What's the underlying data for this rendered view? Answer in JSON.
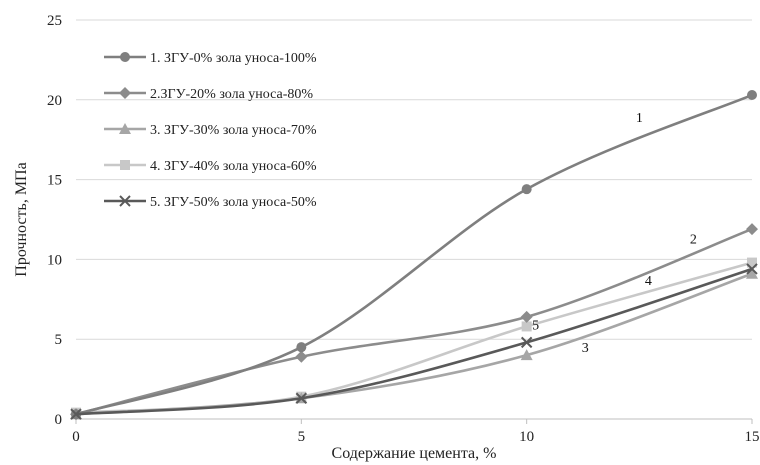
{
  "chart_data": {
    "type": "line",
    "xlabel": "Содержание цемента, %",
    "ylabel": "Прочность, МПа",
    "x": [
      0,
      5,
      10,
      15
    ],
    "xlim": [
      0,
      15
    ],
    "ylim": [
      0,
      25
    ],
    "xticks": [
      "0",
      "5",
      "10",
      "15"
    ],
    "yticks": [
      "0",
      "5",
      "10",
      "15",
      "20",
      "25"
    ],
    "grid": "horizontal",
    "legend_position": "top-left",
    "series": [
      {
        "name": "1. ЗГУ-0% зола уноса-100%",
        "values": [
          0.3,
          4.5,
          14.4,
          20.3
        ],
        "color": "#7f7f7f",
        "marker": "circle",
        "annotation": "1",
        "annotation_x": 12.5,
        "annotation_y": 18.6
      },
      {
        "name": "2.ЗГУ-20% зола уноса-80%",
        "values": [
          0.3,
          3.9,
          6.4,
          11.9
        ],
        "color": "#8c8c8c",
        "marker": "diamond",
        "annotation": "2",
        "annotation_x": 13.7,
        "annotation_y": 11.0
      },
      {
        "name": "3. ЗГУ-30% зола уноса-70%",
        "values": [
          0.3,
          1.3,
          4.0,
          9.1
        ],
        "color": "#a6a6a6",
        "marker": "triangle",
        "annotation": "3",
        "annotation_x": 11.3,
        "annotation_y": 4.2
      },
      {
        "name": "4. ЗГУ-40% зола уноса-60%",
        "values": [
          0.4,
          1.4,
          5.8,
          9.8
        ],
        "color": "#c8c8c8",
        "marker": "square",
        "annotation": "4",
        "annotation_x": 12.7,
        "annotation_y": 8.4
      },
      {
        "name": "5. ЗГУ-50% зола уноса-50%",
        "values": [
          0.3,
          1.3,
          4.8,
          9.4
        ],
        "color": "#595959",
        "marker": "x",
        "annotation": "5",
        "annotation_x": 10.2,
        "annotation_y": 5.6
      }
    ]
  }
}
